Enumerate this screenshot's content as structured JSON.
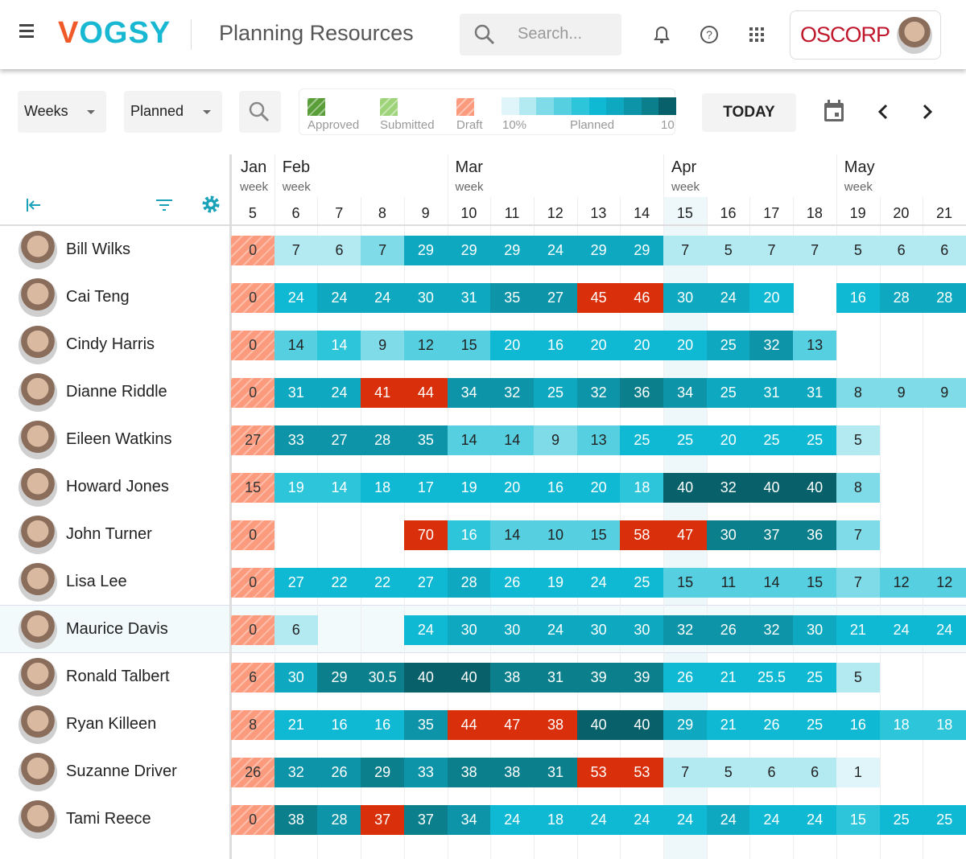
{
  "header": {
    "logo": "VOGSY",
    "title": "Planning Resources",
    "search_placeholder": "Search...",
    "company": "OSCORP"
  },
  "toolbar": {
    "period": "Weeks",
    "mode": "Planned",
    "today": "TODAY",
    "legend": {
      "approved": "Approved",
      "submitted": "Submitted",
      "draft": "Draft",
      "min": "10%",
      "planned": "Planned",
      "max": "10"
    }
  },
  "colors": {
    "approved": "#5a9e3a",
    "submitted": "#9fd37a",
    "draft": "#fb9a7c",
    "over": "#d9300b",
    "today_col": "#eef8fa",
    "shades": [
      "#dff5f9",
      "#b3e9f1",
      "#80dbe8",
      "#56cfe0",
      "#2cc5da",
      "#0fb9d3",
      "#0ea9c0",
      "#0d94a8",
      "#0b7f8c",
      "#08606a"
    ]
  },
  "months": [
    {
      "name": "Jan",
      "sub": "week",
      "start": 0
    },
    {
      "name": "Feb",
      "sub": "week",
      "start": 1
    },
    {
      "name": "Mar",
      "sub": "week",
      "start": 5
    },
    {
      "name": "Apr",
      "sub": "week",
      "start": 10
    },
    {
      "name": "May",
      "sub": "week",
      "start": 14
    }
  ],
  "weeks": [
    "5",
    "6",
    "7",
    "8",
    "9",
    "10",
    "11",
    "12",
    "13",
    "14",
    "15",
    "16",
    "17",
    "18",
    "19",
    "20",
    "21"
  ],
  "today_week_index": 10,
  "selected_row": 8,
  "people": [
    {
      "name": "Bill Wilks",
      "cells": [
        "d0",
        "7/2",
        "6/2",
        "7/3",
        "29/7",
        "29/7",
        "29/7",
        "24/7",
        "29/7",
        "29/7",
        "7/2",
        "5/2",
        "7/2",
        "7/2",
        "5/2",
        "6/2",
        "6/2"
      ]
    },
    {
      "name": "Cai Teng",
      "cells": [
        "d0",
        "24/6",
        "24/7",
        "24/7",
        "30/7",
        "31/7",
        "35/8",
        "27/8",
        "45/r",
        "46/r",
        "30/7",
        "24/7",
        "20/6",
        "",
        "16/6",
        "28/7",
        "28/7"
      ]
    },
    {
      "name": "Cindy Harris",
      "cells": [
        "d0",
        "14/4",
        "14/5",
        "9/3",
        "12/4",
        "15/4",
        "20/6",
        "16/6",
        "20/6",
        "20/6",
        "20/6",
        "25/7",
        "32/8",
        "13/4",
        "",
        "",
        ""
      ]
    },
    {
      "name": "Dianne Riddle",
      "cells": [
        "d0",
        "31/7",
        "24/7",
        "41/r",
        "44/r",
        "34/8",
        "32/8",
        "25/7",
        "32/8",
        "36/9",
        "34/8",
        "25/7",
        "31/7",
        "31/7",
        "8/3",
        "9/3",
        "9/3"
      ]
    },
    {
      "name": "Eileen Watkins",
      "cells": [
        "d27",
        "33/8",
        "27/8",
        "28/8",
        "35/8",
        "14/4",
        "14/4",
        "9/3",
        "13/4",
        "25/6",
        "25/6",
        "20/6",
        "25/6",
        "25/6",
        "5/2",
        "",
        ""
      ]
    },
    {
      "name": "Howard Jones",
      "cells": [
        "d15",
        "19/5",
        "14/5",
        "18/6",
        "17/6",
        "19/6",
        "20/6",
        "16/6",
        "20/6",
        "18/5",
        "40/10",
        "32/10",
        "40/10",
        "40/10",
        "8/3",
        "",
        ""
      ]
    },
    {
      "name": "John Turner",
      "cells": [
        "d0",
        "",
        "",
        "",
        "70/r",
        "16/5",
        "14/4",
        "10/4",
        "15/4",
        "58/r",
        "47/r",
        "30/9",
        "37/9",
        "36/9",
        "7/3",
        "",
        ""
      ]
    },
    {
      "name": "Lisa Lee",
      "cells": [
        "d0",
        "27/6",
        "22/6",
        "22/6",
        "27/6",
        "28/7",
        "26/6",
        "19/6",
        "24/6",
        "25/6",
        "15/4",
        "11/4",
        "14/4",
        "15/4",
        "7/3",
        "12/4",
        "12/4"
      ]
    },
    {
      "name": "Maurice Davis",
      "cells": [
        "d0",
        "6/2",
        "",
        "",
        "24/6",
        "30/7",
        "30/7",
        "24/7",
        "30/7",
        "30/7",
        "32/8",
        "26/8",
        "32/8",
        "30/7",
        "21/6",
        "24/6",
        "24/6"
      ]
    },
    {
      "name": "Ronald Talbert",
      "cells": [
        "d6",
        "30/7",
        "29/9",
        "30.5/9",
        "40/10",
        "40/10",
        "38/9",
        "31/9",
        "39/9",
        "39/9",
        "26/6",
        "21/6",
        "25.5/6",
        "25/6",
        "5/2",
        "",
        ""
      ]
    },
    {
      "name": "Ryan Killeen",
      "cells": [
        "d8",
        "21/6",
        "16/6",
        "16/6",
        "35/8",
        "44/r",
        "47/r",
        "38/r",
        "40/10",
        "40/10",
        "29/7",
        "21/6",
        "26/6",
        "25/6",
        "16/6",
        "18/5",
        "18/5"
      ]
    },
    {
      "name": "Suzanne Driver",
      "cells": [
        "d26",
        "32/8",
        "26/8",
        "29/9",
        "33/8",
        "38/9",
        "38/9",
        "31/9",
        "53/r",
        "53/r",
        "7/2",
        "5/2",
        "6/2",
        "6/2",
        "1/1",
        "",
        ""
      ]
    },
    {
      "name": "Tami Reece",
      "cells": [
        "d0",
        "38/9",
        "28/8",
        "37/r",
        "37/9",
        "34/8",
        "24/6",
        "18/6",
        "24/6",
        "24/6",
        "24/6",
        "24/7",
        "24/6",
        "24/6",
        "15/5",
        "25/6",
        "25/6"
      ]
    }
  ]
}
